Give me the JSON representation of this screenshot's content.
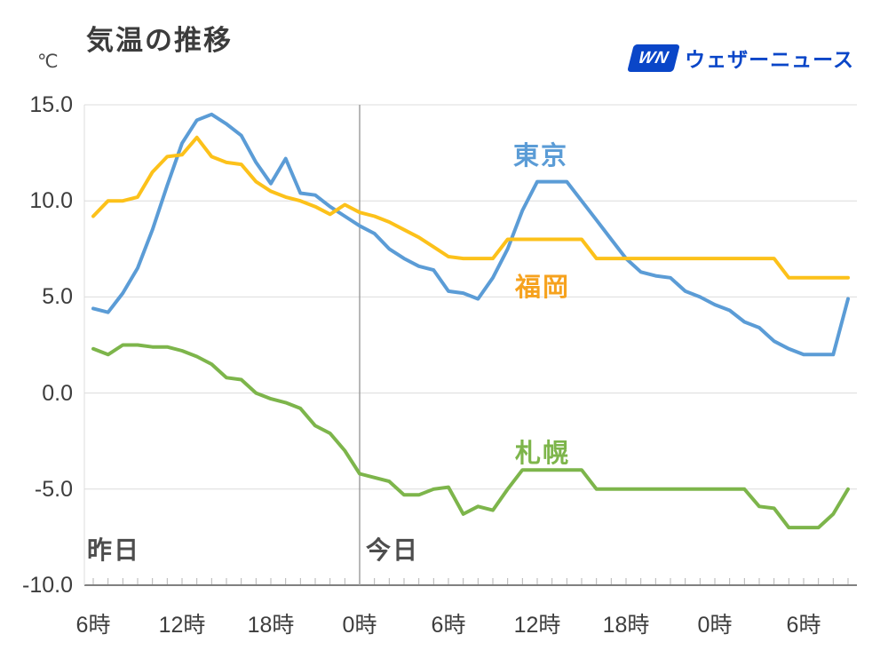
{
  "header": {
    "logo": {
      "mark": "WN",
      "brand": "ウェザーニュース",
      "color": "#0a46c8"
    }
  },
  "chart_data": {
    "type": "line",
    "title": "気温の推移",
    "ylabel": "℃",
    "xlabel": "",
    "ylim": [
      -10.0,
      15.0
    ],
    "grid": true,
    "legend_position": "inline-labels",
    "hours_span": 51,
    "day_divider_hour": 18,
    "day_labels": {
      "yesterday": "昨日",
      "today": "今日"
    },
    "y_ticks": [
      {
        "value": 15.0,
        "label": "15.0"
      },
      {
        "value": 10.0,
        "label": "10.0"
      },
      {
        "value": 5.0,
        "label": "5.0"
      },
      {
        "value": 0.0,
        "label": "0.0"
      },
      {
        "value": -5.0,
        "label": "-5.0"
      },
      {
        "value": -10.0,
        "label": "-10.0"
      }
    ],
    "x_ticks": [
      {
        "hour": 0,
        "label": "6時"
      },
      {
        "hour": 6,
        "label": "12時"
      },
      {
        "hour": 12,
        "label": "18時"
      },
      {
        "hour": 18,
        "label": "0時"
      },
      {
        "hour": 24,
        "label": "6時"
      },
      {
        "hour": 30,
        "label": "12時"
      },
      {
        "hour": 36,
        "label": "18時"
      },
      {
        "hour": 42,
        "label": "0時"
      },
      {
        "hour": 48,
        "label": "6時"
      }
    ],
    "x_unit": "hour (hourly points, starting yesterday 6時)",
    "series": [
      {
        "id": "tokyo",
        "name": "東京",
        "color": "#5b9cd6",
        "label_color": "#5b9cd6",
        "values": [
          4.4,
          4.2,
          5.2,
          6.5,
          8.5,
          10.8,
          13.0,
          14.2,
          14.5,
          14.0,
          13.4,
          12.0,
          10.9,
          12.2,
          10.4,
          10.3,
          9.7,
          9.2,
          8.7,
          8.3,
          7.5,
          7.0,
          6.6,
          6.4,
          5.3,
          5.2,
          4.9,
          6.0,
          7.5,
          9.5,
          11.0,
          11.0,
          11.0,
          10.0,
          9.0,
          8.0,
          7.0,
          6.3,
          6.1,
          6.0,
          5.3,
          5.0,
          4.6,
          4.3,
          3.7,
          3.4,
          2.7,
          2.3,
          2.0,
          2.0,
          2.0,
          4.9
        ]
      },
      {
        "id": "fukuoka",
        "name": "福岡",
        "color": "#fcc11a",
        "label_color": "#f6a21e",
        "values": [
          9.2,
          10.0,
          10.0,
          10.2,
          11.5,
          12.3,
          12.4,
          13.3,
          12.3,
          12.0,
          11.9,
          11.0,
          10.5,
          10.2,
          10.0,
          9.7,
          9.3,
          9.8,
          9.4,
          9.2,
          8.9,
          8.5,
          8.1,
          7.6,
          7.1,
          7.0,
          7.0,
          7.0,
          8.0,
          8.0,
          8.0,
          8.0,
          8.0,
          8.0,
          7.0,
          7.0,
          7.0,
          7.0,
          7.0,
          7.0,
          7.0,
          7.0,
          7.0,
          7.0,
          7.0,
          7.0,
          7.0,
          6.0,
          6.0,
          6.0,
          6.0,
          6.0
        ]
      },
      {
        "id": "sapporo",
        "name": "札幌",
        "color": "#7db54b",
        "label_color": "#7db54b",
        "values": [
          2.3,
          2.0,
          2.5,
          2.5,
          2.4,
          2.4,
          2.2,
          1.9,
          1.5,
          0.8,
          0.7,
          0.0,
          -0.3,
          -0.5,
          -0.8,
          -1.7,
          -2.1,
          -3.0,
          -4.2,
          -4.4,
          -4.6,
          -5.3,
          -5.3,
          -5.0,
          -4.9,
          -6.3,
          -5.9,
          -6.1,
          -5.0,
          -4.0,
          -4.0,
          -4.0,
          -4.0,
          -4.0,
          -5.0,
          -5.0,
          -5.0,
          -5.0,
          -5.0,
          -5.0,
          -5.0,
          -5.0,
          -5.0,
          -5.0,
          -5.0,
          -5.9,
          -6.0,
          -7.0,
          -7.0,
          -7.0,
          -6.3,
          -5.0
        ]
      }
    ]
  }
}
